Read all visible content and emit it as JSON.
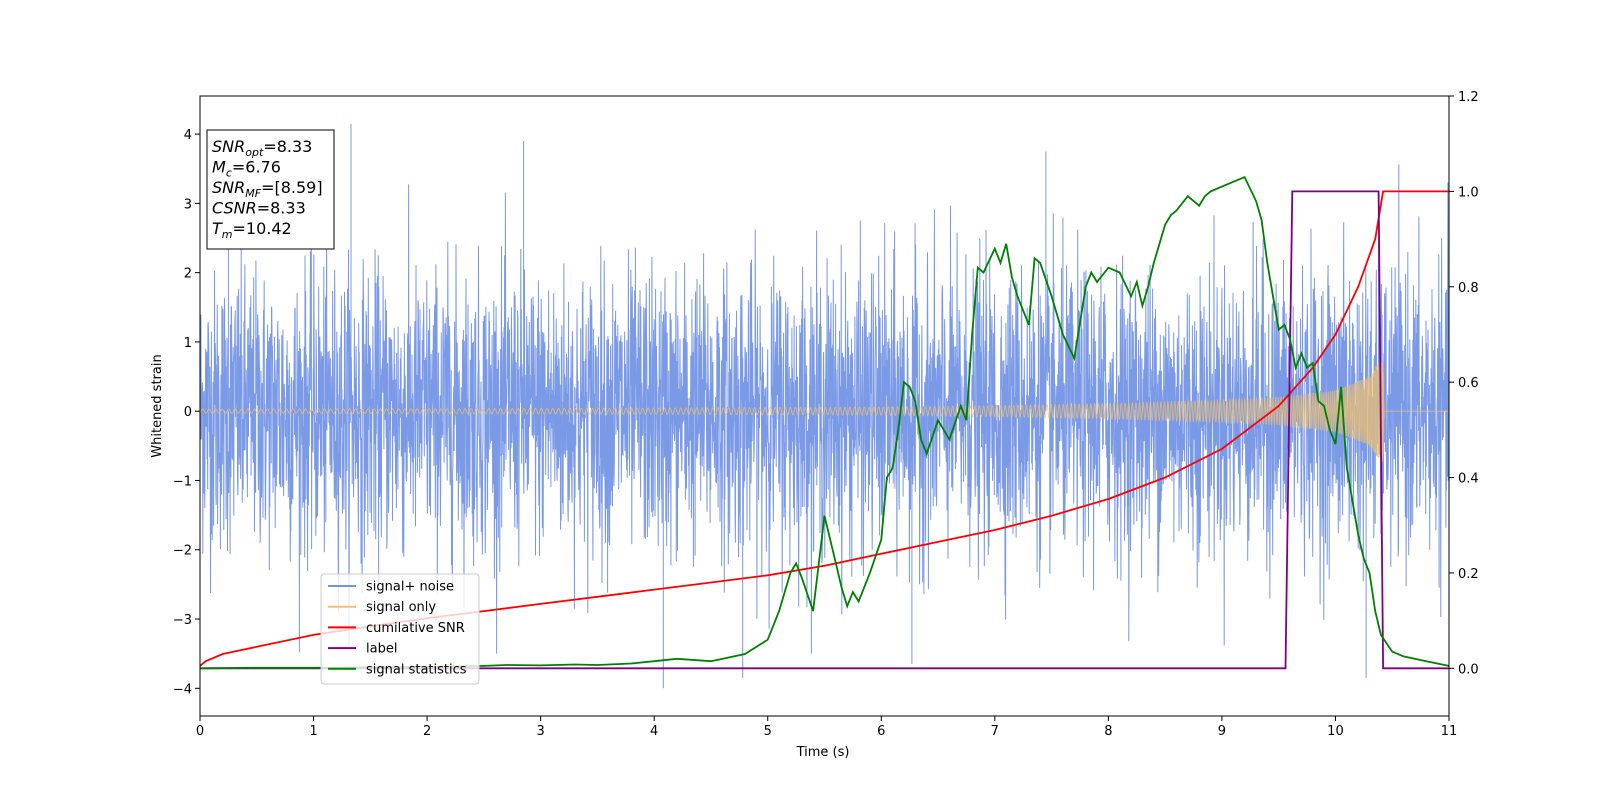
{
  "chart_data": {
    "type": "line",
    "title": "",
    "xlabel": "Time (s)",
    "ylabel": "Whitened strain",
    "y2label": "",
    "xlim": [
      0,
      11
    ],
    "ylim": [
      -4.4,
      4.55
    ],
    "y2lim": [
      -0.1,
      1.2
    ],
    "xticks": [
      "0",
      "1",
      "2",
      "3",
      "4",
      "5",
      "6",
      "7",
      "8",
      "9",
      "10",
      "11"
    ],
    "yticks": [
      "−4",
      "−3",
      "−2",
      "−1",
      "0",
      "1",
      "2",
      "3",
      "4"
    ],
    "y2ticks": [
      "0.0",
      "0.2",
      "0.4",
      "0.6",
      "0.8",
      "1.0",
      "1.2"
    ],
    "grid": false,
    "legend_position": "lower-left",
    "info_box": [
      {
        "base": "SNR",
        "sub": "opt",
        "value": "=8.33"
      },
      {
        "base": "M",
        "sub": "c",
        "value": "=6.76"
      },
      {
        "base": "SNR",
        "sub": "MF",
        "value": "=[8.59]"
      },
      {
        "base": "CSNR",
        "sub": "",
        "value": "=8.33"
      },
      {
        "base": "T",
        "sub": "m",
        "value": "=10.42"
      }
    ],
    "series": [
      {
        "name": "signal+ noise",
        "axis": "left",
        "color": "#7393e6",
        "description_range": [
          -4.0,
          4.15
        ],
        "spikes": [
          {
            "x": 1.33,
            "y": 4.15
          },
          {
            "x": 2.85,
            "y": 3.9
          },
          {
            "x": 4.08,
            "y": -4.0
          },
          {
            "x": 4.78,
            "y": -3.85
          },
          {
            "x": 6.27,
            "y": -3.65
          },
          {
            "x": 10.27,
            "y": -3.85
          },
          {
            "x": 7.45,
            "y": 3.75
          },
          {
            "x": 0.25,
            "y": 3.7
          }
        ]
      },
      {
        "name": "signal only",
        "axis": "left",
        "color": "#f5c268",
        "envelope": [
          [
            0.0,
            0.03
          ],
          [
            2.0,
            0.035
          ],
          [
            4.0,
            0.045
          ],
          [
            6.0,
            0.06
          ],
          [
            7.0,
            0.08
          ],
          [
            8.0,
            0.11
          ],
          [
            9.0,
            0.16
          ],
          [
            9.5,
            0.2
          ],
          [
            10.0,
            0.3
          ],
          [
            10.3,
            0.5
          ],
          [
            10.42,
            0.82
          ],
          [
            10.43,
            0.0
          ],
          [
            11.0,
            0.0
          ]
        ]
      },
      {
        "name": "cumilative SNR",
        "axis": "right",
        "color": "#ff0000",
        "x": [
          0.0,
          0.05,
          0.2,
          0.5,
          1.0,
          1.5,
          2.0,
          2.5,
          3.0,
          3.5,
          4.0,
          4.5,
          5.0,
          5.5,
          6.0,
          6.5,
          7.0,
          7.5,
          8.0,
          8.5,
          9.0,
          9.5,
          9.8,
          10.0,
          10.2,
          10.35,
          10.42,
          11.0
        ],
        "y": [
          0.005,
          0.015,
          0.03,
          0.045,
          0.07,
          0.088,
          0.105,
          0.12,
          0.135,
          0.15,
          0.165,
          0.18,
          0.195,
          0.215,
          0.24,
          0.265,
          0.29,
          0.32,
          0.355,
          0.4,
          0.46,
          0.55,
          0.63,
          0.7,
          0.8,
          0.9,
          1.0,
          1.0
        ]
      },
      {
        "name": "label",
        "axis": "right",
        "color": "#800080",
        "x": [
          0.0,
          9.56,
          9.62,
          10.38,
          10.42,
          11.0
        ],
        "y": [
          0.0,
          0.0,
          1.0,
          1.0,
          0.0,
          0.0
        ]
      },
      {
        "name": "signal statistics",
        "axis": "right",
        "color": "#008000",
        "x": [
          0.0,
          0.5,
          1.0,
          1.5,
          2.0,
          2.5,
          2.7,
          3.0,
          3.3,
          3.5,
          3.8,
          4.0,
          4.2,
          4.5,
          4.8,
          5.0,
          5.1,
          5.2,
          5.25,
          5.3,
          5.4,
          5.5,
          5.6,
          5.65,
          5.7,
          5.75,
          5.8,
          5.9,
          6.0,
          6.05,
          6.1,
          6.15,
          6.2,
          6.25,
          6.3,
          6.35,
          6.4,
          6.5,
          6.6,
          6.7,
          6.75,
          6.8,
          6.85,
          6.9,
          7.0,
          7.05,
          7.1,
          7.15,
          7.2,
          7.3,
          7.35,
          7.4,
          7.5,
          7.6,
          7.7,
          7.8,
          7.85,
          7.9,
          8.0,
          8.1,
          8.2,
          8.25,
          8.3,
          8.35,
          8.4,
          8.5,
          8.55,
          8.6,
          8.7,
          8.75,
          8.8,
          8.85,
          8.9,
          9.0,
          9.1,
          9.2,
          9.3,
          9.35,
          9.4,
          9.5,
          9.55,
          9.6,
          9.65,
          9.7,
          9.75,
          9.8,
          9.85,
          9.9,
          9.95,
          10.0,
          10.05,
          10.1,
          10.15,
          10.2,
          10.25,
          10.3,
          10.35,
          10.4,
          10.5,
          10.6,
          10.8,
          11.0
        ],
        "y": [
          0.0,
          0.001,
          0.001,
          0.002,
          0.003,
          0.005,
          0.007,
          0.006,
          0.008,
          0.007,
          0.01,
          0.015,
          0.02,
          0.015,
          0.03,
          0.06,
          0.12,
          0.2,
          0.22,
          0.19,
          0.12,
          0.32,
          0.22,
          0.17,
          0.13,
          0.16,
          0.14,
          0.2,
          0.27,
          0.4,
          0.42,
          0.5,
          0.6,
          0.59,
          0.56,
          0.48,
          0.45,
          0.52,
          0.48,
          0.55,
          0.52,
          0.7,
          0.84,
          0.83,
          0.88,
          0.85,
          0.89,
          0.82,
          0.78,
          0.72,
          0.86,
          0.85,
          0.78,
          0.7,
          0.65,
          0.8,
          0.83,
          0.81,
          0.84,
          0.83,
          0.78,
          0.81,
          0.76,
          0.8,
          0.85,
          0.93,
          0.95,
          0.96,
          0.99,
          0.98,
          0.97,
          0.99,
          1.0,
          1.01,
          1.02,
          1.03,
          0.98,
          0.94,
          0.85,
          0.71,
          0.72,
          0.69,
          0.63,
          0.66,
          0.63,
          0.64,
          0.56,
          0.55,
          0.5,
          0.47,
          0.59,
          0.42,
          0.35,
          0.28,
          0.23,
          0.2,
          0.12,
          0.07,
          0.035,
          0.025,
          0.015,
          0.005
        ]
      }
    ]
  }
}
